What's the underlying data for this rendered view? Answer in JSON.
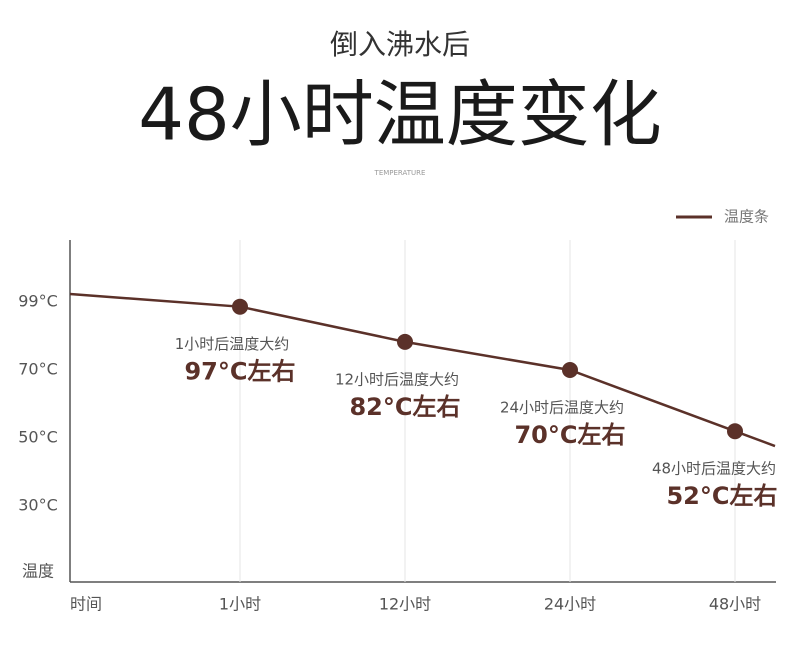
{
  "chart_data": {
    "type": "line",
    "subtitle": "倒入沸水后",
    "title": "48小时温度变化",
    "caption": "TEMPERATURE",
    "x_label": "时间",
    "y_label": "温度",
    "categories": [
      "1小时",
      "12小时",
      "24小时",
      "48小时"
    ],
    "series": [
      {
        "name": "温度条",
        "color": "#5b3129",
        "values": [
          97,
          82,
          70,
          52
        ],
        "value_labels": [
          "97°C左右",
          "82°C左右",
          "70°C左右",
          "52°C左右"
        ]
      }
    ],
    "annotations": [
      "1小时后温度大约",
      "12小时后温度大约",
      "24小时后温度大约",
      "48小时后温度大约"
    ],
    "yticks": [
      {
        "value": 99,
        "label": "99°C"
      },
      {
        "value": 70,
        "label": "70°C"
      },
      {
        "value": 50,
        "label": "50°C"
      },
      {
        "value": 30,
        "label": "30°C"
      }
    ],
    "grid": true,
    "legend": "top-right"
  }
}
